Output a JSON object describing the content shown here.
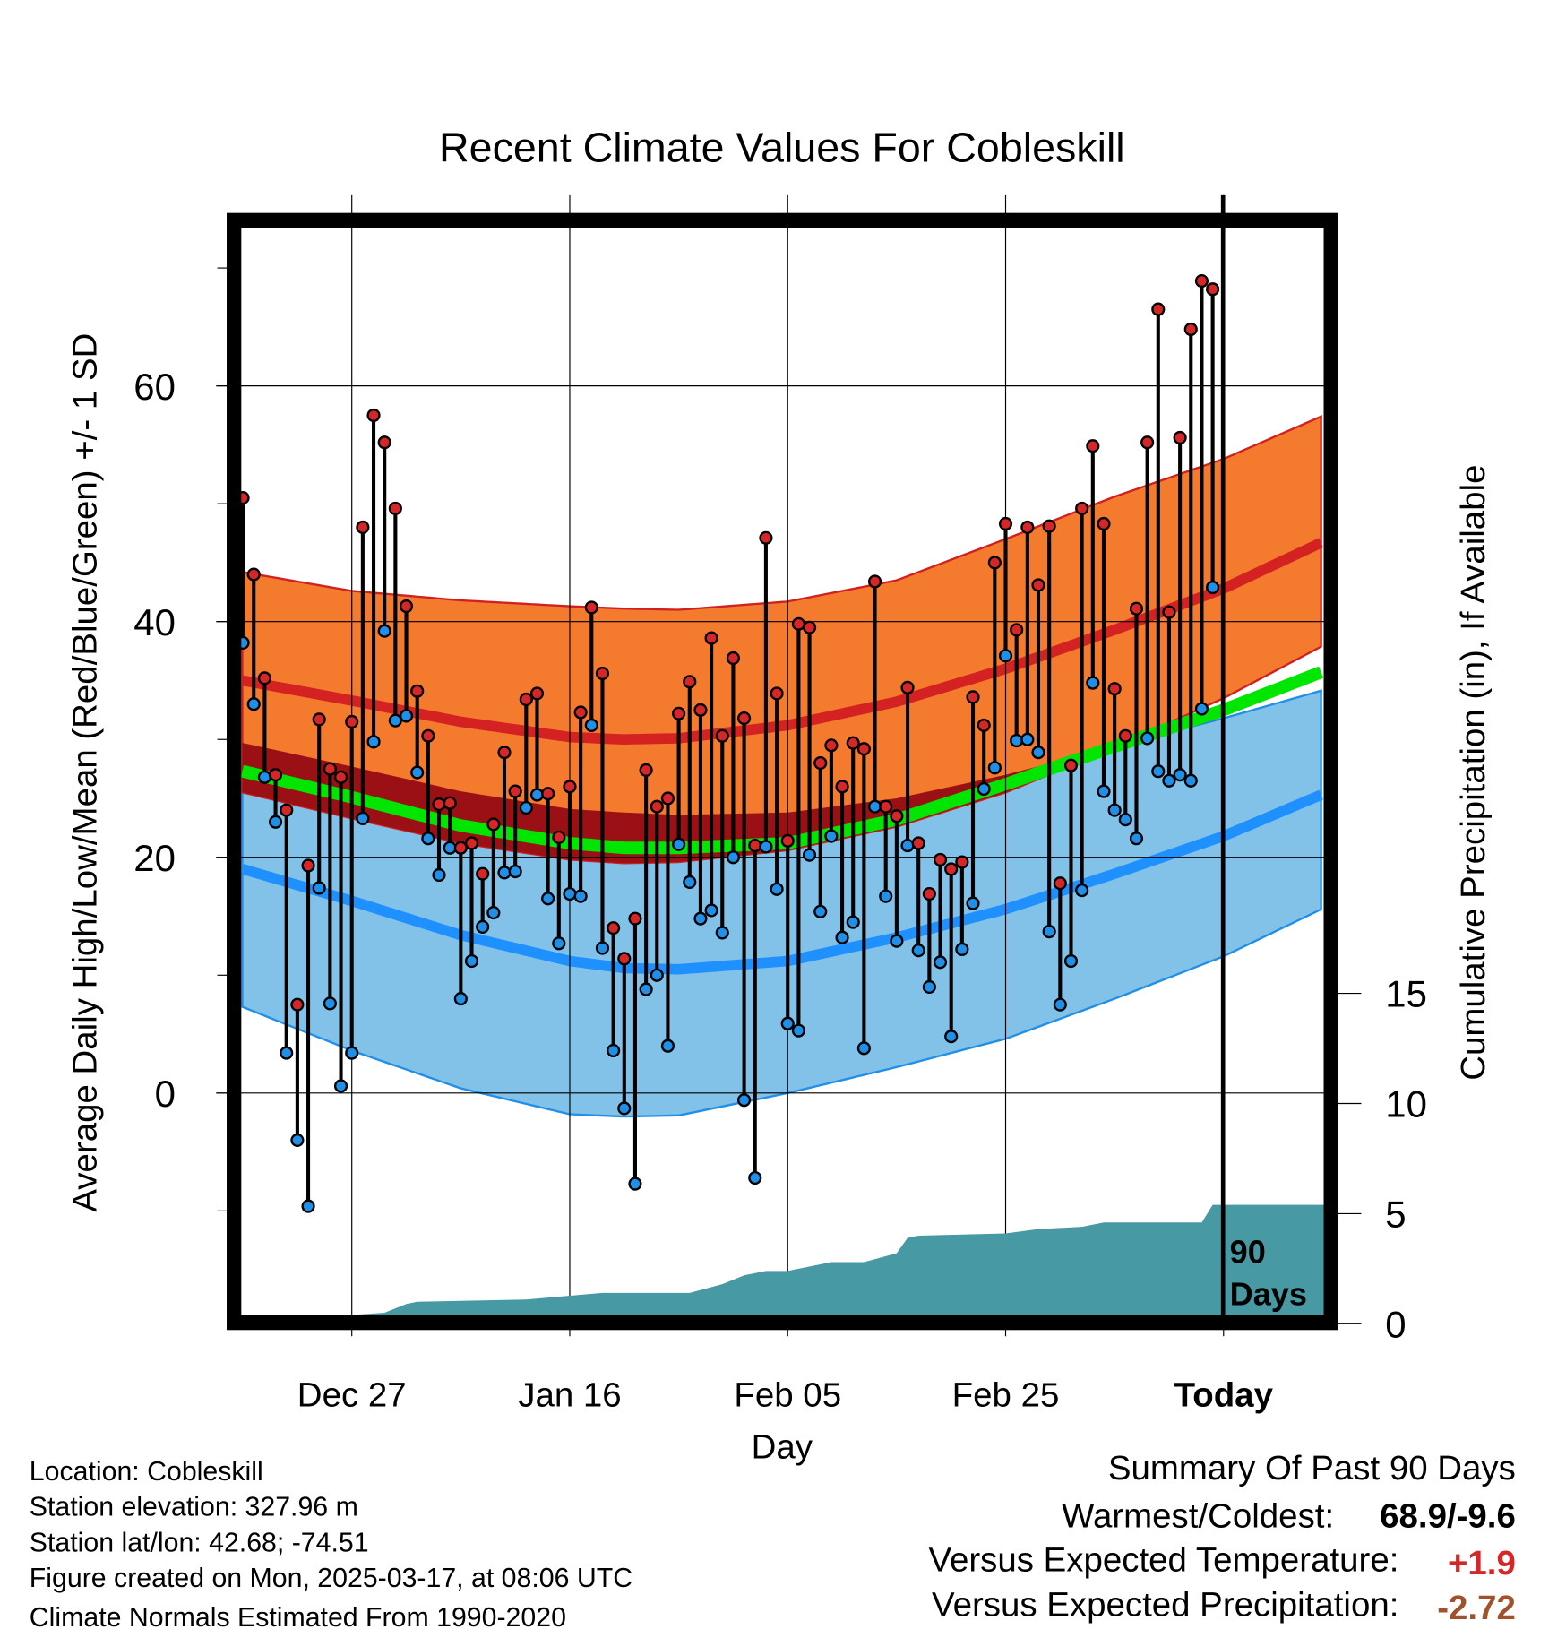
{
  "chart_data": {
    "type": "line",
    "title": "Recent Climate Values For Cobleskill",
    "xlabel": "Day",
    "ylabel": "Average Daily High/Low/Mean (Red/Blue/Green) +/- 1 SD",
    "y2label": "Cumulative Precipitation (in), If Available",
    "ylim": [
      -19.5,
      74
    ],
    "y2lim": [
      0,
      44.5
    ],
    "x_ticks": [
      {
        "day": 10,
        "label": "Dec 27"
      },
      {
        "day": 30,
        "label": "Jan 16"
      },
      {
        "day": 50,
        "label": "Feb 05"
      },
      {
        "day": 70,
        "label": "Feb 25"
      },
      {
        "day": 90,
        "label": "Today"
      }
    ],
    "y_ticks": [
      {
        "v": 0,
        "label": "0"
      },
      {
        "v": 20,
        "label": "20"
      },
      {
        "v": 40,
        "label": "40"
      },
      {
        "v": 60,
        "label": "60"
      }
    ],
    "y_minor_ticks": [
      -10,
      10,
      30,
      50,
      70
    ],
    "y2_ticks": [
      {
        "v": 0,
        "label": "0"
      },
      {
        "v": 5,
        "label": "5"
      },
      {
        "v": 10,
        "label": "10"
      },
      {
        "v": 15,
        "label": "15"
      }
    ],
    "xlim_days": [
      -0.5,
      99.2
    ],
    "period_label": [
      "90",
      "Days"
    ],
    "highs": [
      50.5,
      44,
      35.2,
      27,
      24,
      7.5,
      19.3,
      31.7,
      27.5,
      26.8,
      31.5,
      48,
      57.5,
      55.2,
      49.6,
      41.3,
      34.1,
      30.3,
      24.5,
      24.6,
      20.8,
      21.2,
      18.6,
      22.8,
      28.9,
      25.6,
      33.4,
      33.9,
      25.4,
      21.7,
      26,
      32.3,
      41.2,
      35.6,
      14,
      11.4,
      14.8,
      27.4,
      24.3,
      25,
      32.2,
      34.9,
      32.5,
      38.6,
      30.3,
      36.9,
      31.8,
      21,
      47.1,
      33.9,
      21.4,
      39.8,
      39.5,
      28,
      29.5,
      26,
      29.7,
      29.2,
      43.4,
      24.3,
      23.5,
      34.4,
      21.2,
      16.9,
      19.8,
      19,
      19.6,
      33.6,
      31.2,
      45,
      48.3,
      39.3,
      48,
      43.1,
      48.1,
      17.8,
      27.8,
      49.6,
      54.9,
      48.3,
      34.3,
      30.3,
      41.1,
      55.2,
      66.5,
      40.8,
      55.6,
      64.8,
      68.9,
      68.2
    ],
    "lows": [
      38.2,
      33,
      26.8,
      23,
      3.4,
      -4,
      -9.6,
      17.4,
      7.6,
      0.6,
      3.4,
      23.3,
      29.8,
      39.2,
      31.6,
      32,
      27.2,
      21.6,
      18.5,
      20.8,
      8,
      11.2,
      14.1,
      15.3,
      18.7,
      18.8,
      24.2,
      25.3,
      16.5,
      12.7,
      16.9,
      16.7,
      31.2,
      12.3,
      3.6,
      -1.3,
      -7.7,
      8.8,
      10,
      4,
      21.1,
      17.9,
      14.8,
      15.5,
      13.6,
      20,
      -0.6,
      -7.2,
      20.9,
      17.3,
      5.9,
      5.3,
      20.2,
      15.4,
      21.8,
      13.2,
      14.5,
      3.8,
      24.3,
      16.7,
      12.9,
      21,
      12.1,
      9,
      11.1,
      4.8,
      12.2,
      16.1,
      25.8,
      27.6,
      37.1,
      29.9,
      30,
      28.9,
      13.7,
      7.5,
      11.2,
      17.2,
      34.8,
      25.6,
      24,
      23.2,
      21.6,
      30.1,
      27.3,
      26.5,
      27,
      26.5,
      32.6,
      42.9
    ],
    "normals": {
      "days": [
        0,
        10,
        20,
        30,
        35,
        40,
        50,
        60,
        70,
        80,
        90,
        99.2
      ],
      "high_mean": [
        35,
        33.3,
        31.5,
        30.2,
        30,
        30.1,
        31.2,
        33.2,
        36,
        39.3,
        42.8,
        46.8
      ],
      "high_upper": [
        44.2,
        42.6,
        41.8,
        41.3,
        41.1,
        41,
        41.7,
        43.5,
        47,
        50.6,
        53.8,
        57.5
      ],
      "high_lower": [
        25.5,
        23.3,
        21.2,
        19.8,
        19.5,
        19.6,
        20.6,
        22.6,
        25.5,
        29.3,
        33.5,
        38
      ],
      "mean": [
        27.3,
        25.1,
        22.7,
        21.2,
        20.8,
        20.8,
        21.2,
        23.2,
        26.2,
        29.4,
        32.5,
        35.8
      ],
      "low_upper": [
        29.7,
        27.7,
        25.6,
        24.1,
        23.8,
        23.6,
        23.8,
        25,
        27,
        29.4,
        31.8,
        34.2
      ],
      "low_mean": [
        19,
        16.3,
        13.4,
        11.2,
        10.6,
        10.5,
        11.2,
        13.2,
        15.6,
        18.6,
        21.8,
        25.4
      ],
      "low_lower": [
        7.3,
        3.6,
        0.4,
        -1.8,
        -2,
        -1.9,
        0,
        2.2,
        4.6,
        8,
        11.6,
        15.7
      ]
    },
    "precip_cumulative": {
      "days": [
        0,
        3,
        7,
        13,
        15,
        16,
        26,
        33,
        41,
        44,
        46,
        48,
        50,
        54,
        57,
        60,
        61,
        62,
        70,
        73,
        77,
        79,
        88,
        89,
        99.2
      ],
      "values": [
        0,
        0.2,
        0.3,
        0.5,
        0.9,
        1.0,
        1.1,
        1.4,
        1.4,
        1.8,
        2.2,
        2.4,
        2.4,
        2.8,
        2.8,
        3.2,
        3.9,
        4.0,
        4.1,
        4.3,
        4.4,
        4.6,
        4.6,
        5.4,
        5.4
      ]
    },
    "colors": {
      "high": "#d62728",
      "low": "#1f8fe8",
      "orange": "#f47a2e",
      "lightblue": "#82c1e8",
      "darkred": "#9b1014",
      "green": "#00e600",
      "bluemean": "#1e90ff",
      "redmean": "#d42222",
      "precip": "#4799a3"
    }
  },
  "footer": {
    "lines": [
      "Location: Cobleskill",
      "Station elevation: 327.96 m",
      "Station lat/lon: 42.68; -74.51",
      "Figure created on Mon, 2025-03-17, at 08:06 UTC",
      "Climate Normals Estimated From 1990-2020"
    ]
  },
  "summary": {
    "title": "Summary Of Past 90 Days",
    "warmest_coldest_label": "Warmest/Coldest:",
    "warmest_coldest_value": "68.9/-9.6",
    "temp_label": "Versus Expected Temperature:",
    "temp_value": "+1.9",
    "temp_color": "#d62728",
    "precip_label": "Versus Expected Precipitation:",
    "precip_value": "-2.72",
    "precip_color": "#a0522d"
  }
}
